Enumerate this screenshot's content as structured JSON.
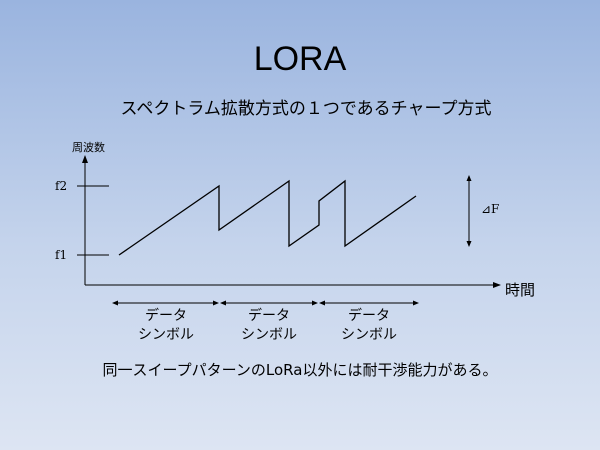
{
  "slide": {
    "title": "LORA",
    "subtitle": "スペクトラム拡散方式の１つであるチャープ方式",
    "footer": "同一スイープパターンのLoRa以外には耐干渉能力がある。"
  },
  "diagram": {
    "y_axis_label": "周波数",
    "x_axis_label": "時間",
    "f2_label": "f2",
    "f1_label": "f1",
    "delta_label": "⊿F",
    "symbols": [
      {
        "line1": "データ",
        "line2": "シンボル"
      },
      {
        "line1": "データ",
        "line2": "シンボル"
      },
      {
        "line1": "データ",
        "line2": "シンボル"
      }
    ]
  }
}
